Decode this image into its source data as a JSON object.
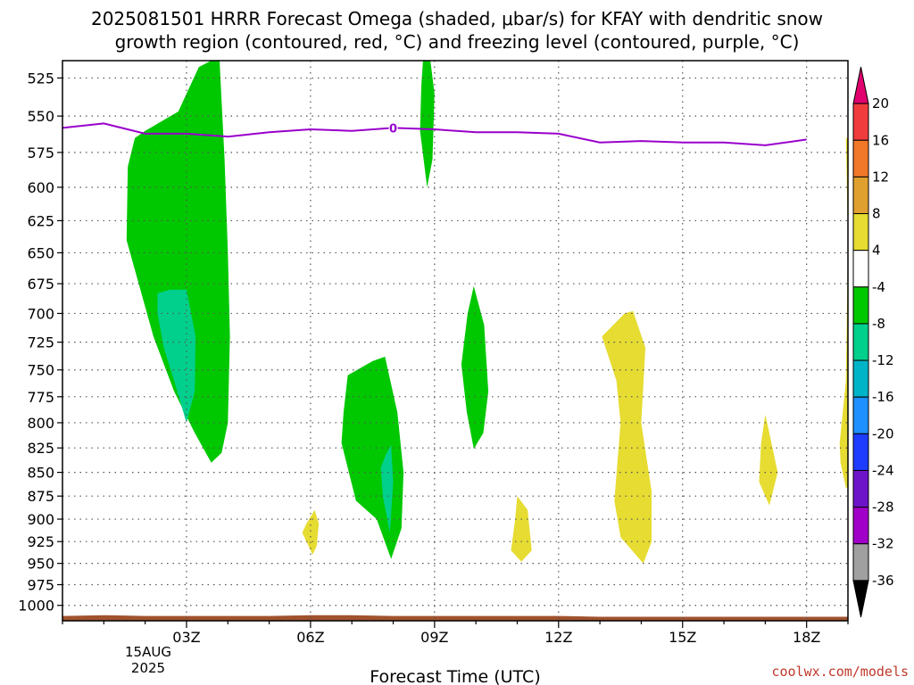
{
  "title": {
    "line1": "2025081501 HRRR Forecast Omega (shaded, μbar/s) for KFAY with dendritic snow",
    "line2": "growth region (contoured, red, °C) and freezing level (contoured, purple, °C)"
  },
  "credit": "coolwx.com/models",
  "chart_data": {
    "type": "heatmap",
    "xlabel": "Forecast Time (UTC)",
    "ylabel": "",
    "x_tick_labels": [
      "03Z",
      "06Z",
      "09Z",
      "12Z",
      "15Z",
      "18Z"
    ],
    "x_tick_hours": [
      3,
      6,
      9,
      12,
      15,
      18
    ],
    "x_date_label": [
      "15AUG",
      "2025"
    ],
    "xlim": [
      0.0,
      19.0
    ],
    "y_tick_labels": [
      "525",
      "550",
      "575",
      "600",
      "625",
      "650",
      "675",
      "700",
      "725",
      "750",
      "775",
      "800",
      "825",
      "850",
      "875",
      "900",
      "925",
      "950",
      "975",
      "1000"
    ],
    "ylim_pressure_hPa": [
      1019,
      514
    ],
    "y_log_scale": true,
    "grid": true,
    "colorbar": {
      "labels": [
        "20",
        "16",
        "12",
        "8",
        "4",
        "-4",
        "-8",
        "-12",
        "-16",
        "-20",
        "-24",
        "-28",
        "-32",
        "-36"
      ],
      "colors": [
        "#e0006e",
        "#f03c3c",
        "#f07828",
        "#e0a030",
        "#e6dc32",
        "#ffffff",
        "#00c800",
        "#00d08c",
        "#00b4c8",
        "#1e90ff",
        "#1e3cff",
        "#6e14c8",
        "#a000c8",
        "#a0a0a0",
        "#000000"
      ]
    },
    "freezing_level": {
      "label": "0",
      "color": "#9900cc",
      "points": [
        [
          0.0,
          558
        ],
        [
          1.0,
          555
        ],
        [
          2.0,
          562
        ],
        [
          3.0,
          562
        ],
        [
          4.0,
          564
        ],
        [
          5.0,
          561
        ],
        [
          6.0,
          559
        ],
        [
          7.0,
          560
        ],
        [
          8.0,
          558
        ],
        [
          9.0,
          559
        ],
        [
          10.0,
          561
        ],
        [
          11.0,
          561
        ],
        [
          12.0,
          562
        ],
        [
          13.0,
          568
        ],
        [
          14.0,
          567
        ],
        [
          15.0,
          568
        ],
        [
          16.0,
          568
        ],
        [
          17.0,
          570
        ],
        [
          18.0,
          566
        ]
      ]
    },
    "regions": [
      {
        "name": "omega-green-03z",
        "color": "#00c800",
        "points": [
          [
            2.0,
            560
          ],
          [
            2.8,
            547
          ],
          [
            3.3,
            518
          ],
          [
            3.6,
            514
          ],
          [
            3.8,
            514
          ],
          [
            3.92,
            580
          ],
          [
            4.0,
            650
          ],
          [
            4.05,
            720
          ],
          [
            4.0,
            800
          ],
          [
            3.85,
            830
          ],
          [
            3.6,
            840
          ],
          [
            3.2,
            810
          ],
          [
            2.7,
            770
          ],
          [
            2.2,
            720
          ],
          [
            1.55,
            640
          ],
          [
            1.58,
            585
          ],
          [
            1.75,
            565
          ]
        ]
      },
      {
        "name": "omega-teal-03z",
        "color": "#00d08c",
        "points": [
          [
            2.3,
            683
          ],
          [
            2.6,
            680
          ],
          [
            3.0,
            680
          ],
          [
            3.22,
            720
          ],
          [
            3.2,
            770
          ],
          [
            3.0,
            800
          ],
          [
            2.7,
            760
          ],
          [
            2.45,
            730
          ],
          [
            2.3,
            700
          ]
        ]
      },
      {
        "name": "omega-green-09z",
        "color": "#00c800",
        "points": [
          [
            8.72,
            514
          ],
          [
            8.9,
            514
          ],
          [
            9.0,
            535
          ],
          [
            8.95,
            580
          ],
          [
            8.82,
            600
          ],
          [
            8.65,
            560
          ],
          [
            8.68,
            530
          ]
        ]
      },
      {
        "name": "omega-green-10z",
        "color": "#00c800",
        "points": [
          [
            9.95,
            677
          ],
          [
            10.2,
            710
          ],
          [
            10.3,
            770
          ],
          [
            10.18,
            810
          ],
          [
            9.95,
            826
          ],
          [
            9.78,
            790
          ],
          [
            9.65,
            745
          ],
          [
            9.8,
            700
          ]
        ]
      },
      {
        "name": "omega-green-07z",
        "color": "#00c800",
        "points": [
          [
            6.9,
            755
          ],
          [
            7.5,
            742
          ],
          [
            7.8,
            738
          ],
          [
            8.1,
            790
          ],
          [
            8.25,
            850
          ],
          [
            8.2,
            910
          ],
          [
            7.95,
            945
          ],
          [
            7.6,
            900
          ],
          [
            7.1,
            880
          ],
          [
            6.75,
            820
          ],
          [
            6.8,
            790
          ]
        ]
      },
      {
        "name": "omega-teal-07z",
        "color": "#00d08c",
        "points": [
          [
            7.82,
            832
          ],
          [
            7.95,
            822
          ],
          [
            8.0,
            860
          ],
          [
            7.92,
            915
          ],
          [
            7.75,
            875
          ],
          [
            7.7,
            845
          ]
        ]
      },
      {
        "name": "omega-yellow-06z",
        "color": "#e6dc32",
        "points": [
          [
            6.1,
            890
          ],
          [
            6.2,
            905
          ],
          [
            6.15,
            930
          ],
          [
            6.05,
            940
          ],
          [
            5.8,
            915
          ],
          [
            5.9,
            905
          ]
        ]
      },
      {
        "name": "omega-yellow-11z",
        "color": "#e6dc32",
        "points": [
          [
            11.0,
            875
          ],
          [
            11.25,
            890
          ],
          [
            11.35,
            935
          ],
          [
            11.1,
            948
          ],
          [
            10.85,
            935
          ],
          [
            10.95,
            900
          ]
        ]
      },
      {
        "name": "omega-yellow-14z",
        "color": "#e6dc32",
        "points": [
          [
            13.05,
            720
          ],
          [
            13.6,
            700
          ],
          [
            13.8,
            698
          ],
          [
            14.1,
            730
          ],
          [
            14.0,
            800
          ],
          [
            14.25,
            870
          ],
          [
            14.25,
            925
          ],
          [
            14.05,
            950
          ],
          [
            13.5,
            920
          ],
          [
            13.35,
            880
          ],
          [
            13.5,
            800
          ],
          [
            13.4,
            760
          ]
        ]
      },
      {
        "name": "omega-yellow-17z",
        "color": "#e6dc32",
        "points": [
          [
            17.0,
            792
          ],
          [
            17.15,
            820
          ],
          [
            17.3,
            850
          ],
          [
            17.1,
            885
          ],
          [
            16.85,
            860
          ],
          [
            16.9,
            820
          ]
        ]
      },
      {
        "name": "omega-yellow-edge",
        "color": "#e6dc32",
        "points": [
          [
            18.95,
            565
          ],
          [
            19.0,
            565
          ],
          [
            19.0,
            866
          ],
          [
            18.95,
            866
          ],
          [
            18.82,
            840
          ],
          [
            18.8,
            820
          ],
          [
            18.95,
            760
          ],
          [
            19.0,
            640
          ]
        ]
      }
    ],
    "terrain": {
      "color": "#a0522d",
      "points": [
        [
          0.0,
          1013
        ],
        [
          1.0,
          1012
        ],
        [
          2.0,
          1013
        ],
        [
          3.0,
          1013
        ],
        [
          4.0,
          1013
        ],
        [
          5.0,
          1013
        ],
        [
          6.0,
          1012
        ],
        [
          7.0,
          1012
        ],
        [
          8.0,
          1013
        ],
        [
          9.0,
          1013
        ],
        [
          10.0,
          1013
        ],
        [
          11.0,
          1013
        ],
        [
          12.0,
          1013
        ],
        [
          13.0,
          1014
        ],
        [
          14.0,
          1014
        ],
        [
          15.0,
          1014
        ],
        [
          16.0,
          1014
        ],
        [
          17.0,
          1014
        ],
        [
          18.0,
          1014
        ],
        [
          19.0,
          1014
        ]
      ]
    }
  }
}
